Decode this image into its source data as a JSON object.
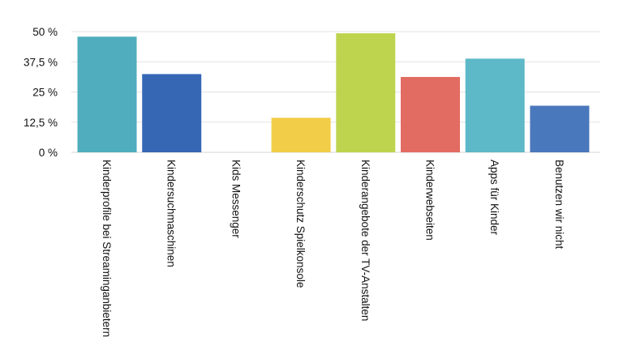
{
  "chart_data": {
    "type": "bar",
    "categories": [
      "Kinderprofile bei Streaminganbietern",
      "Kindersuchmaschinen",
      "Kids Messenger",
      "Kinderschutz Spielkonsole",
      "Kinderangebote der TV-Anstalten",
      "Kinderwebseiten",
      "Apps für Kinder",
      "Benutzen wir nicht"
    ],
    "values": [
      47.9,
      32.4,
      0,
      14.3,
      49.3,
      31.2,
      38.8,
      19.3
    ],
    "colors": [
      "#4fadbd",
      "#3567b5",
      "#3567b5",
      "#f2cd48",
      "#bfd44e",
      "#e26b62",
      "#5db8c8",
      "#4a78bd"
    ],
    "ylim": [
      0,
      50
    ],
    "yticks": [
      0,
      12.5,
      25,
      37.5,
      50
    ],
    "ytick_labels": [
      "0 %",
      "12,5 %",
      "25 %",
      "37,5 %",
      "50 %"
    ],
    "grid": true,
    "title": "",
    "xlabel": "",
    "ylabel": ""
  }
}
